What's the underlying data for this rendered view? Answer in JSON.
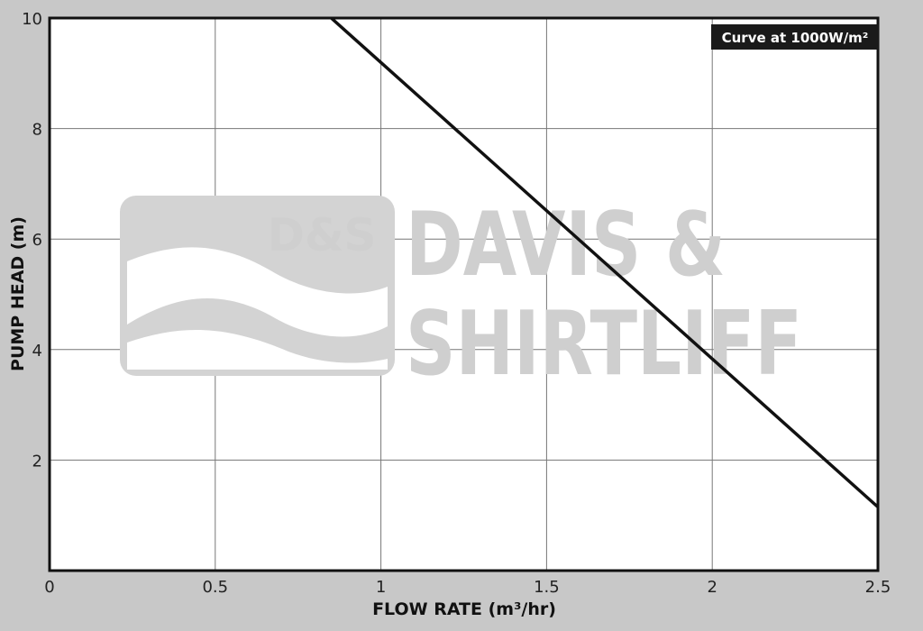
{
  "chart_data": {
    "type": "line",
    "xlabel": "FLOW RATE (m³/hr)",
    "ylabel": "PUMP HEAD (m)",
    "xlim": [
      0,
      2.5
    ],
    "ylim": [
      0,
      10
    ],
    "x_ticks": [
      0,
      0.5,
      1,
      1.5,
      2,
      2.5
    ],
    "y_ticks": [
      2,
      4,
      6,
      8,
      10
    ],
    "x_tick_labels": [
      "0",
      "0.5",
      "1",
      "1.5",
      "2",
      "2.5"
    ],
    "y_tick_labels": [
      "2",
      "4",
      "6",
      "8",
      "10"
    ],
    "grid": true,
    "annotation": "Curve at 1000W/m²",
    "annotation_position": "top-right",
    "series": [
      {
        "x": [
          0.85,
          2.5
        ],
        "y": [
          10,
          1.15
        ]
      }
    ],
    "line_color": "#111111",
    "watermark": {
      "logo_text": "D&S",
      "lines": [
        "DAVIS &",
        "SHIRTLIFF"
      ],
      "color": "#cfcfcf"
    }
  }
}
